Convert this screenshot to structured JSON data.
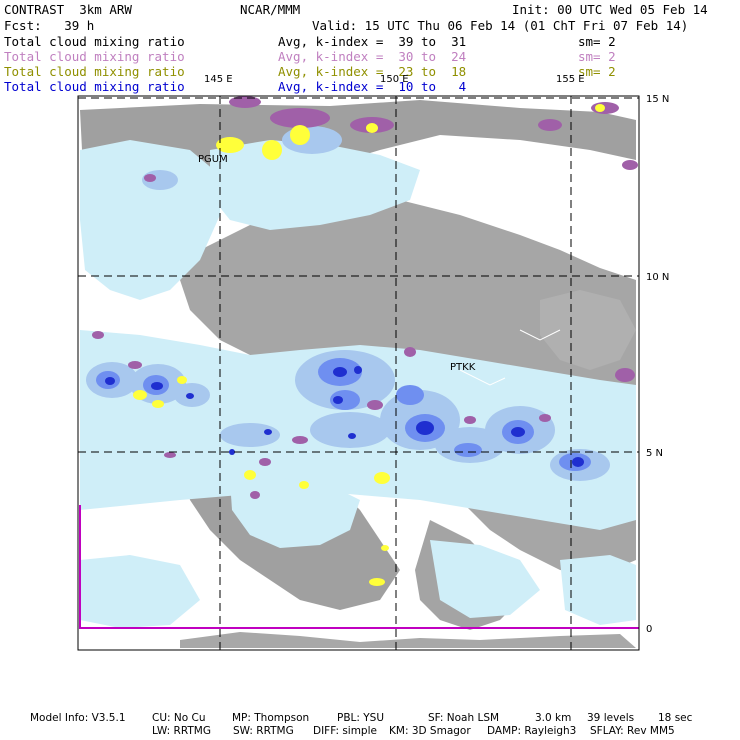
{
  "header": {
    "model": "CONTRAST  3km ARW",
    "org": "NCAR/MMM",
    "init": "Init: 00 UTC Wed 05 Feb 14",
    "fcst": "Fcst:   39 h",
    "valid": "Valid: 15 UTC Thu 06 Feb 14 (01 ChT Fri 07 Feb 14)"
  },
  "legend": [
    {
      "field": "Total cloud mixing ratio",
      "avg": "Avg, k-index =  39 to  31",
      "sm": "sm= 2",
      "color": "#000000"
    },
    {
      "field": "Total cloud mixing ratio",
      "avg": "Avg, k-index =  30 to  24",
      "sm": "sm= 2",
      "color": "#c080c0"
    },
    {
      "field": "Total cloud mixing ratio",
      "avg": "Avg, k-index =  23 to  18",
      "sm": "sm= 2",
      "color": "#909000"
    },
    {
      "field": "Total cloud mixing ratio",
      "avg": "Avg, k-index =  10 to   4",
      "sm": "",
      "color": "#0000d0"
    }
  ],
  "map": {
    "lon_labels": [
      "145 E",
      "150 E",
      "155 E"
    ],
    "lat_labels": [
      "15 N",
      "10 N",
      "5 N",
      "0"
    ],
    "stations": [
      "PGUM",
      "PTKK"
    ],
    "colors": {
      "land": "#a0a0a0",
      "cyan": "#cfeef8",
      "blue1": "#a8c8ee",
      "blue2": "#6f8ff0",
      "blue3": "#1f2fd0",
      "purple": "#a060a8",
      "yellow": "#ffff3a",
      "frame": "#c000c0"
    }
  },
  "footer": {
    "line1": [
      "Model Info: V3.5.1",
      "CU: No Cu",
      "MP: Thompson",
      "PBL: YSU",
      "SF: Noah LSM",
      "3.0 km",
      "39 levels",
      "18 sec"
    ],
    "line2": [
      "LW: RRTMG",
      "SW: RRTMG",
      "DIFF: simple",
      "KM: 3D Smagor",
      "DAMP: Rayleigh3",
      "SFLAY: Rev MM5"
    ]
  }
}
